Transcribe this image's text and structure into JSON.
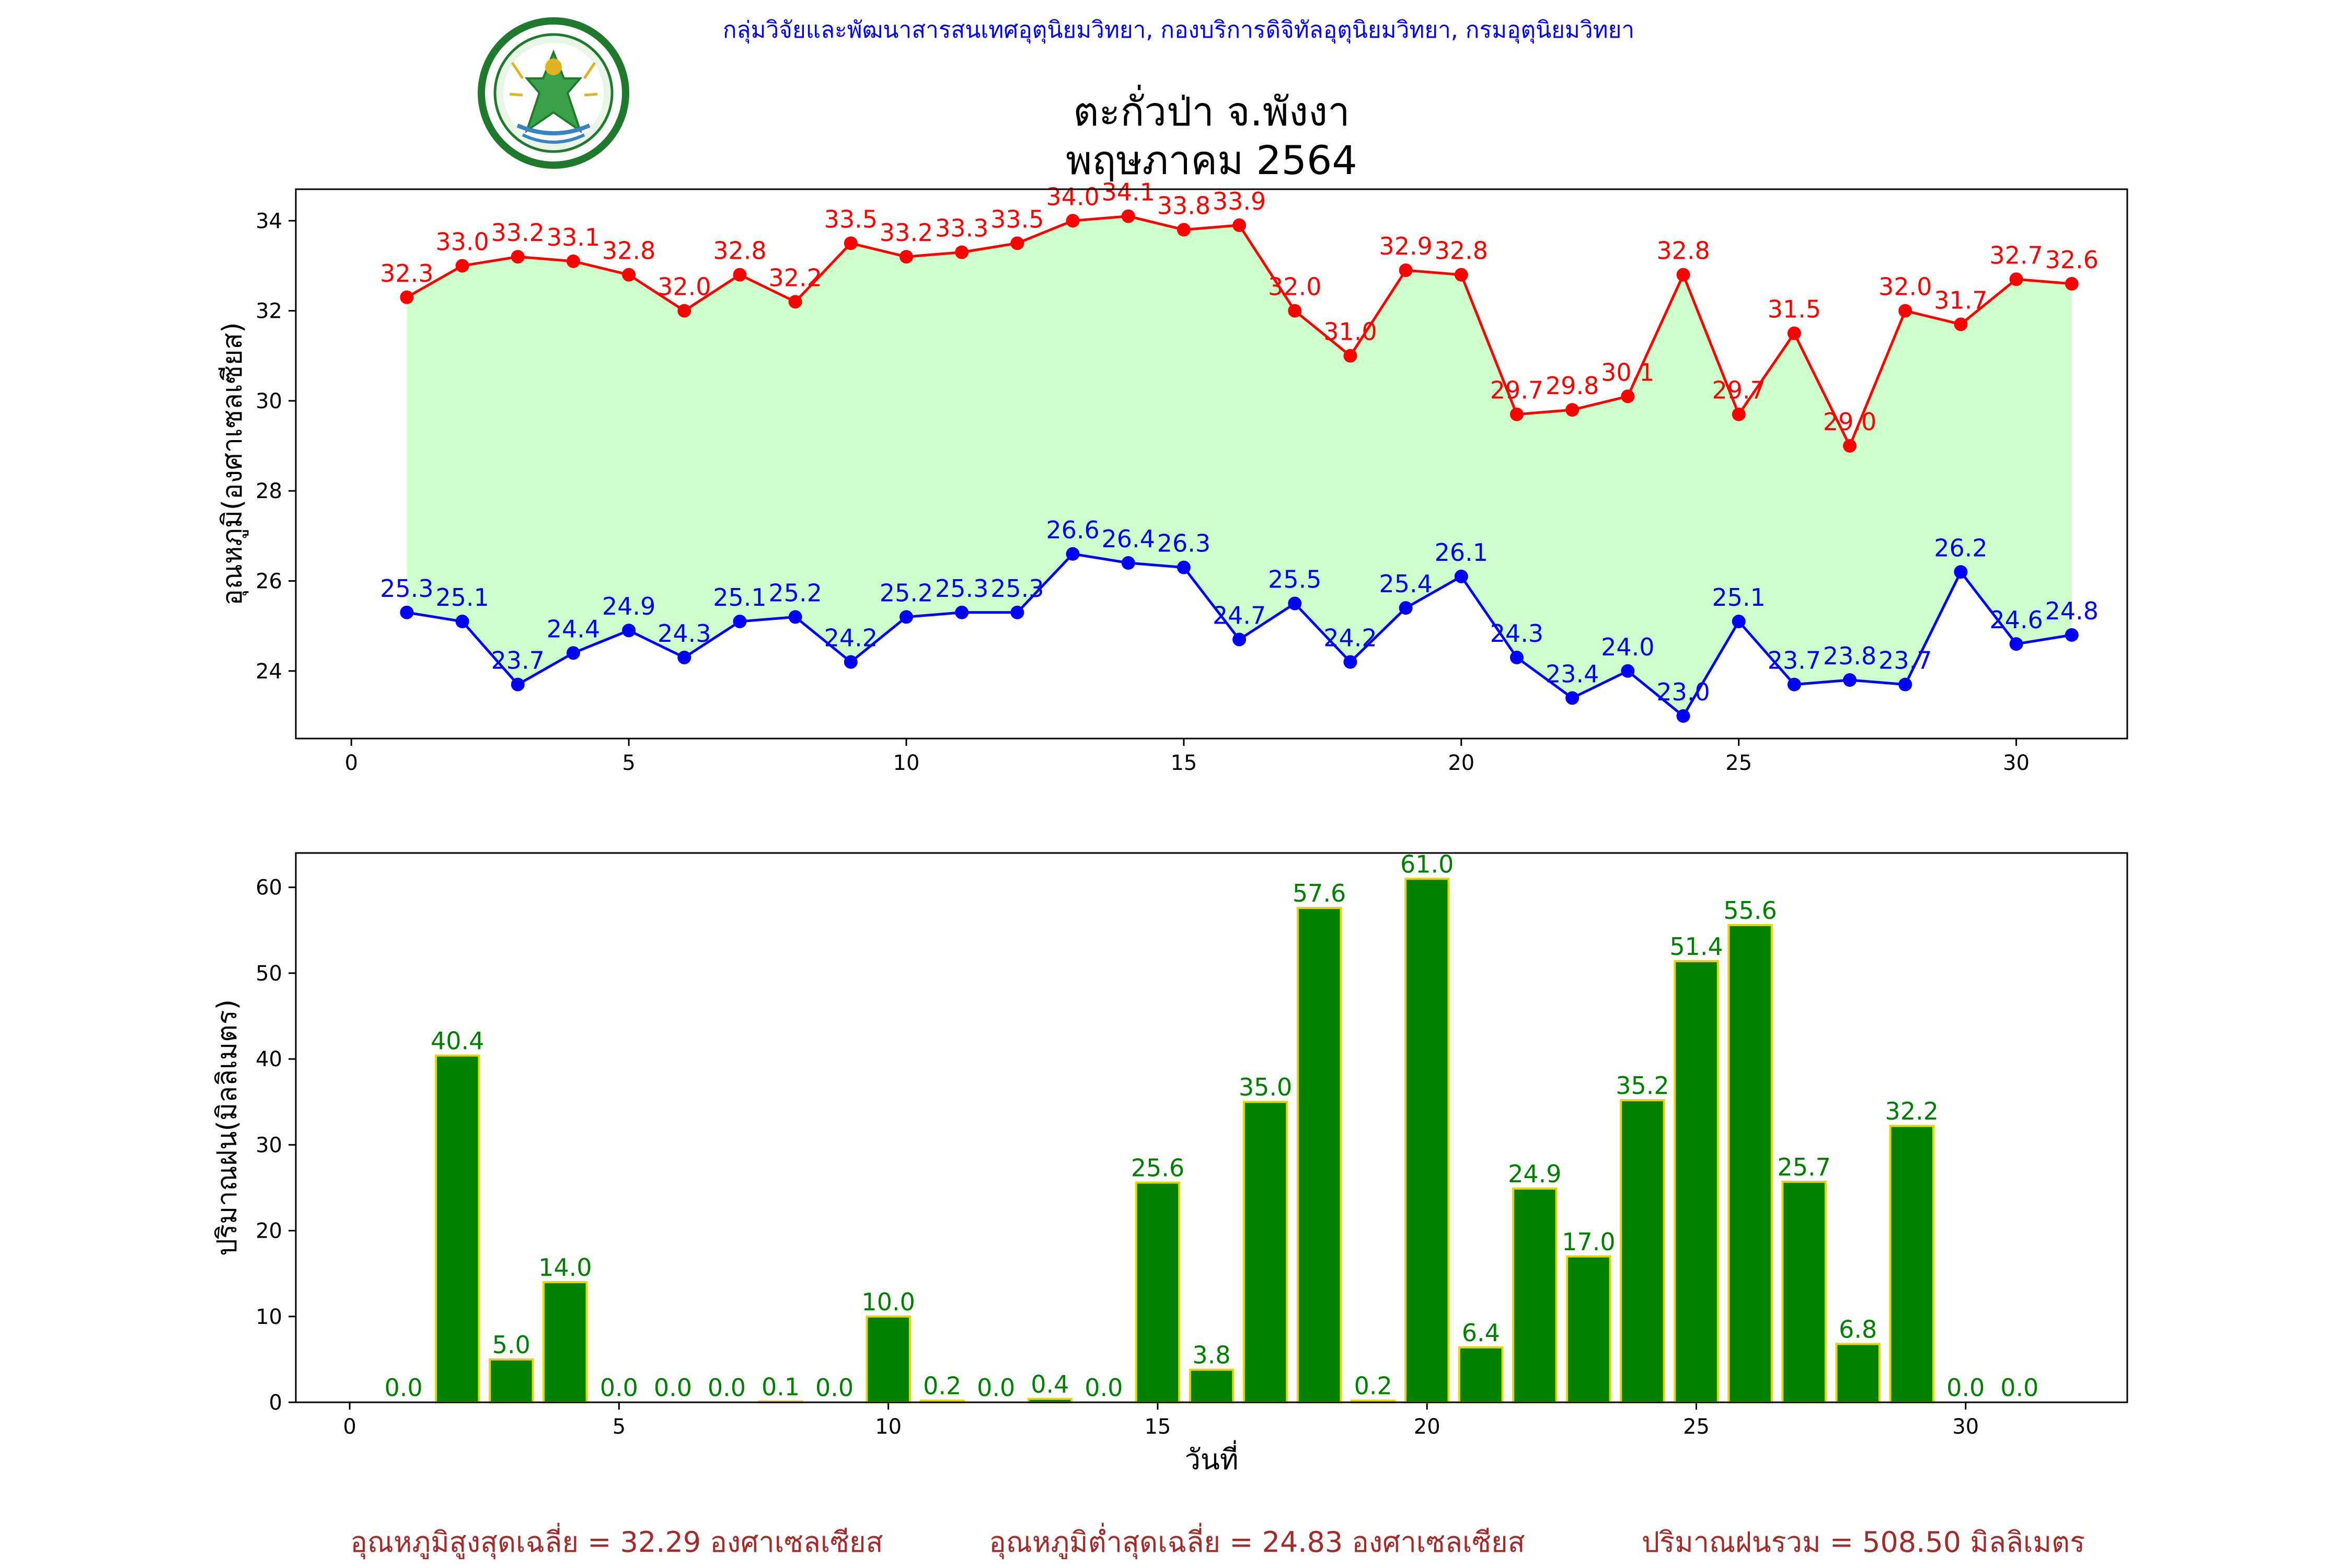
{
  "header": {
    "agency_line": "กลุ่มวิจัยและพัฒนาสารสนเทศอุตุนิยมวิทยา, กองบริการดิจิทัลอุตุนิยมวิทยา, กรมอุตุนิยมวิทยา",
    "logo_text": "กรมอุตุนิยมวิทยา METEOROLOGICAL DEPARTMENT",
    "title": "ตะกั่วป่า จ.พังงา",
    "subtitle": "พฤษภาคม 2564"
  },
  "colors": {
    "max_line": "#ff0000",
    "min_line": "#0000ff",
    "fill": "#ccffcc",
    "bar_fill": "#008000",
    "bar_edge": "#e6d600",
    "bar_label": "#008000",
    "agency_text": "#0000ff",
    "footer_text": "#a52a2a",
    "logo_green": "#1f7a2e"
  },
  "chart_data": [
    {
      "type": "line",
      "ylabel": "อุณหภูมิ(องศาเซลเซียส)",
      "xlabel": "",
      "xlim": [
        -1,
        32
      ],
      "ylim": [
        22.5,
        34.7
      ],
      "xticks": [
        0,
        5,
        10,
        15,
        20,
        25,
        30
      ],
      "yticks": [
        24,
        26,
        28,
        30,
        32,
        34
      ],
      "x": [
        1,
        2,
        3,
        4,
        5,
        6,
        7,
        8,
        9,
        10,
        11,
        12,
        13,
        14,
        15,
        16,
        17,
        18,
        19,
        20,
        21,
        22,
        23,
        24,
        25,
        26,
        27,
        28,
        29,
        30,
        31
      ],
      "series": [
        {
          "key": "max",
          "values": [
            32.3,
            33.0,
            33.2,
            33.1,
            32.8,
            32.0,
            32.8,
            32.2,
            33.5,
            33.2,
            33.3,
            33.5,
            34.0,
            34.1,
            33.8,
            33.9,
            32.0,
            31.0,
            32.9,
            32.8,
            29.7,
            29.8,
            30.1,
            32.8,
            29.7,
            31.5,
            29.0,
            32.0,
            31.7,
            32.7,
            32.6
          ],
          "labels": [
            "32.3",
            "33.0",
            "33.2",
            "33.1",
            "32.8",
            "32.0",
            "32.8",
            "32.2",
            "33.5",
            "33.2",
            "33.3",
            "33.5",
            "34.0",
            "34.1",
            "33.8",
            "33.9",
            "32.0",
            "31.0",
            "32.9",
            "32.8",
            "29.7",
            "29.8",
            "30.1",
            "32.8",
            "29.7",
            "31.5",
            "29.0",
            "32.0",
            "31.7",
            "32.7",
            "32.6"
          ]
        },
        {
          "key": "min",
          "values": [
            25.3,
            25.1,
            23.7,
            24.4,
            24.9,
            24.3,
            25.1,
            25.2,
            24.2,
            25.2,
            25.3,
            25.3,
            26.6,
            26.4,
            26.3,
            24.7,
            25.5,
            24.2,
            25.4,
            26.1,
            24.3,
            23.4,
            24.0,
            23.0,
            25.1,
            23.7,
            23.8,
            23.7,
            26.2,
            24.6,
            24.8
          ],
          "labels": [
            "25.3",
            "25.1",
            "23.7",
            "24.4",
            "24.9",
            "24.3",
            "25.1",
            "25.2",
            "24.2",
            "25.2",
            "25.3",
            "25.3",
            "26.6",
            "26.4",
            "26.3",
            "24.7",
            "25.5",
            "24.2",
            "25.4",
            "26.1",
            "24.3",
            "23.4",
            "24.0",
            "23.0",
            "25.1",
            "23.7",
            "23.8",
            "23.7",
            "26.2",
            "24.6",
            "24.8"
          ]
        }
      ],
      "grid": false,
      "fill_between": true
    },
    {
      "type": "bar",
      "ylabel": "ปริมาณฝน(มิลลิเมตร)",
      "xlabel": "วันที่",
      "xlim": [
        -1,
        33
      ],
      "ylim": [
        0,
        64
      ],
      "xticks": [
        0,
        5,
        10,
        15,
        20,
        25,
        30
      ],
      "yticks": [
        0,
        10,
        20,
        30,
        40,
        50,
        60
      ],
      "x": [
        1,
        2,
        3,
        4,
        5,
        6,
        7,
        8,
        9,
        10,
        11,
        12,
        13,
        14,
        15,
        16,
        17,
        18,
        19,
        20,
        21,
        22,
        23,
        24,
        25,
        26,
        27,
        28,
        29,
        30,
        31
      ],
      "values": [
        0.0,
        40.4,
        5.0,
        14.0,
        0.0,
        0.0,
        0.0,
        0.1,
        0.0,
        10.0,
        0.2,
        0.0,
        0.4,
        0.0,
        25.6,
        3.8,
        35.0,
        57.6,
        0.2,
        61.0,
        6.4,
        24.9,
        17.0,
        35.2,
        51.4,
        55.6,
        25.7,
        6.8,
        32.2,
        0.0,
        0.0
      ],
      "labels": [
        "0.0",
        "40.4",
        "5.0",
        "14.0",
        "0.0",
        "0.0",
        "0.0",
        "0.1",
        "0.0",
        "10.0",
        "0.2",
        "0.0",
        "0.4",
        "0.0",
        "25.6",
        "3.8",
        "35.0",
        "57.6",
        "0.2",
        "61.0",
        "6.4",
        "24.9",
        "17.0",
        "35.2",
        "51.4",
        "55.6",
        "25.7",
        "6.8",
        "32.2",
        "0.0",
        "0.0"
      ],
      "grid": false
    }
  ],
  "footer": {
    "avg_max": "อุณหภูมิสูงสุดเฉลี่ย = 32.29 องศาเซลเซียส",
    "avg_min": "อุณหภูมิต่ำสุดเฉลี่ย = 24.83 องศาเซลเซียส",
    "total_rain": "ปริมาณฝนรวม = 508.50 มิลลิเมตร"
  }
}
